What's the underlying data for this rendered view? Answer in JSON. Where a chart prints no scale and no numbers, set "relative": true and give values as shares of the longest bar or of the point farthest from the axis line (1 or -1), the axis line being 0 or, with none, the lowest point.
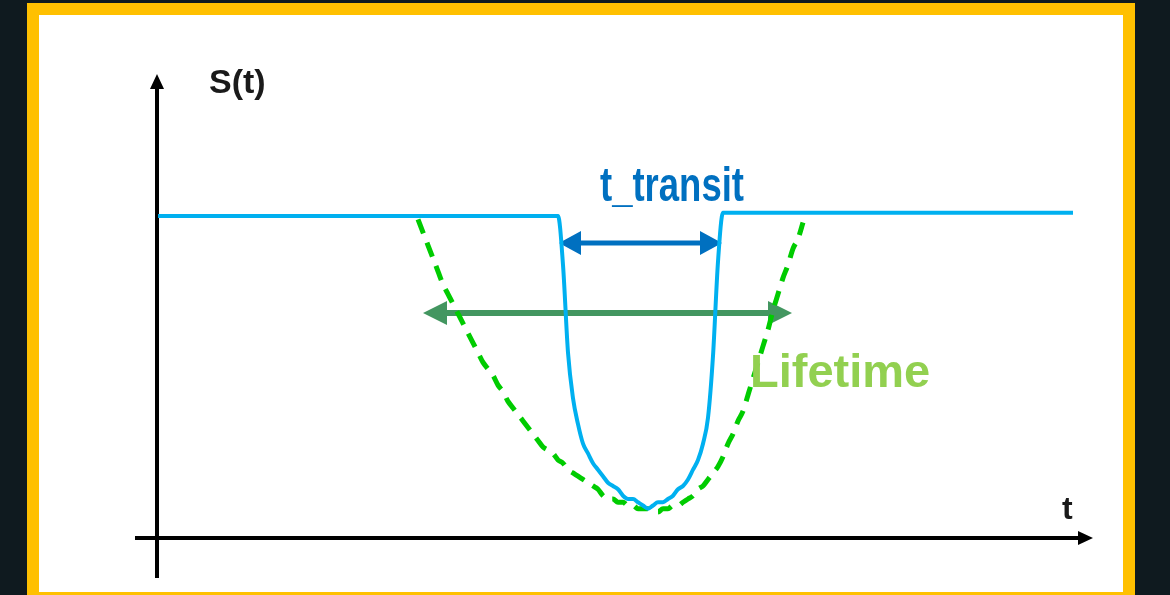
{
  "chart_data": {
    "type": "line",
    "relative": true,
    "tick_labels": false,
    "xlabel": "t",
    "ylabel": "S(t)",
    "annotations": [
      "t_transit",
      "Lifetime"
    ],
    "categories": [
      null,
      null,
      null,
      null,
      null,
      null,
      null,
      null,
      null,
      null,
      null,
      null,
      null,
      null,
      null,
      null,
      null,
      null,
      null,
      null,
      null,
      null,
      null,
      null,
      null,
      null,
      null,
      null,
      null,
      null,
      null,
      null,
      null,
      null,
      null,
      null,
      null,
      null,
      null,
      null,
      null,
      null,
      null,
      null,
      null,
      null,
      null,
      null,
      null,
      null,
      null,
      null,
      null,
      null,
      null,
      null,
      null,
      null,
      null,
      null,
      null,
      null,
      null,
      null,
      null,
      null,
      null,
      null,
      null,
      null,
      null,
      null,
      null,
      null,
      null,
      null,
      null,
      null,
      null,
      null,
      null,
      null,
      null,
      null,
      null,
      null,
      null,
      null,
      null,
      null,
      null,
      null,
      null,
      null,
      null,
      null,
      null,
      null,
      null,
      null,
      null,
      null,
      null,
      null,
      null,
      null,
      null,
      null,
      null,
      null,
      null,
      null,
      null,
      null,
      null,
      null,
      null,
      null,
      null,
      null,
      null,
      null,
      null,
      null,
      null,
      null,
      null,
      null,
      null,
      null,
      null,
      null,
      null,
      null,
      null,
      null,
      null,
      null,
      null,
      null,
      null,
      null,
      null,
      null,
      null,
      null,
      null,
      null,
      null,
      null,
      null,
      null,
      null,
      null,
      null,
      null,
      null,
      null,
      null,
      null,
      null,
      null,
      null,
      null,
      null,
      null,
      null,
      null,
      null,
      null,
      null,
      null,
      null,
      null,
      null,
      null,
      null,
      null,
      null,
      null,
      null,
      null,
      null,
      null
    ],
    "series": [
      {
        "color": "#00b0f0",
        "line_style": "solid",
        "values": [
          0.99,
          0.99,
          0.99,
          0.99,
          0.99,
          0.99,
          0.99,
          0.99,
          0.99,
          0.99,
          0.99,
          0.99,
          0.99,
          0.99,
          0.99,
          0.99,
          0.99,
          0.99,
          0.99,
          0.99,
          0.99,
          0.99,
          0.99,
          0.99,
          0.99,
          0.99,
          0.99,
          0.99,
          0.99,
          0.99,
          0.99,
          0.99,
          0.99,
          0.99,
          0.99,
          0.99,
          0.99,
          0.99,
          0.99,
          0.99,
          0.99,
          0.99,
          0.99,
          0.99,
          0.99,
          0.99,
          0.99,
          0.99,
          0.99,
          0.99,
          0.99,
          0.99,
          0.99,
          0.99,
          0.99,
          0.99,
          0.99,
          0.99,
          0.99,
          0.99,
          0.99,
          0.99,
          0.99,
          0.99,
          0.99,
          0.99,
          0.99,
          0.99,
          0.99,
          0.99,
          0.99,
          0.99,
          0.99,
          0.99,
          0.99,
          0.99,
          0.99,
          0.99,
          0.99,
          0.99,
          0.99,
          0.84,
          0.57,
          0.43,
          0.35,
          0.29,
          0.26,
          0.23,
          0.21,
          0.19,
          0.17,
          0.16,
          0.15,
          0.13,
          0.12,
          0.12,
          0.11,
          0.1,
          0.09,
          0.1,
          0.11,
          0.11,
          0.12,
          0.13,
          0.15,
          0.16,
          0.18,
          0.21,
          0.24,
          0.29,
          0.37,
          0.56,
          0.85,
          1,
          1,
          1,
          1,
          1,
          1,
          1,
          1,
          1,
          1,
          1,
          1,
          1,
          1,
          1,
          1,
          1,
          1,
          1,
          1,
          1,
          1,
          1,
          1,
          1,
          1,
          1,
          1,
          1,
          1,
          1,
          1,
          1,
          1,
          1,
          1,
          1,
          1,
          1,
          1,
          1,
          1,
          1,
          1,
          1,
          1,
          1,
          1,
          1,
          1,
          1,
          1,
          1,
          1,
          1,
          1,
          1,
          1,
          1,
          1,
          1,
          1,
          1,
          1,
          1,
          1,
          1,
          1,
          1,
          1,
          1
        ]
      },
      {
        "color": "#00cc00",
        "line_style": "dashed",
        "values": [
          null,
          null,
          null,
          null,
          null,
          null,
          null,
          null,
          null,
          null,
          null,
          null,
          null,
          null,
          null,
          null,
          null,
          null,
          null,
          null,
          null,
          null,
          null,
          null,
          null,
          null,
          null,
          null,
          null,
          null,
          null,
          null,
          null,
          null,
          null,
          null,
          null,
          null,
          null,
          null,
          null,
          null,
          null,
          null,
          null,
          null,
          null,
          null,
          null,
          null,
          null,
          null,
          0.98,
          0.94,
          0.9,
          0.86,
          0.82,
          0.78,
          0.75,
          0.72,
          0.69,
          0.66,
          0.63,
          0.6,
          0.57,
          0.54,
          0.52,
          0.5,
          0.47,
          0.45,
          0.42,
          0.4,
          0.38,
          0.36,
          0.34,
          0.32,
          0.3,
          0.28,
          0.27,
          0.26,
          0.24,
          0.23,
          0.21,
          0.2,
          0.19,
          0.18,
          0.17,
          0.16,
          0.15,
          0.13,
          0.12,
          0.12,
          0.11,
          0.11,
          0.1,
          0.1,
          0.09,
          0.09,
          0.09,
          0.08,
          0.08,
          0.09,
          0.09,
          0.1,
          0.1,
          0.11,
          0.12,
          0.13,
          0.15,
          0.16,
          0.18,
          0.2,
          0.22,
          0.25,
          0.29,
          0.32,
          0.36,
          0.39,
          0.44,
          0.49,
          0.54,
          0.59,
          0.64,
          0.7,
          0.75,
          0.8,
          0.84,
          0.89,
          0.92,
          0.97,
          null,
          null,
          null,
          null,
          null,
          null,
          null,
          null,
          null,
          null,
          null,
          null,
          null,
          null,
          null,
          null,
          null,
          null,
          null,
          null,
          null,
          null,
          null,
          null,
          null,
          null,
          null,
          null,
          null,
          null,
          null,
          null,
          null,
          null,
          null,
          null,
          null,
          null,
          null,
          null,
          null,
          null,
          null,
          null,
          null,
          null,
          null,
          null,
          null,
          null,
          null,
          null,
          null,
          null
        ]
      }
    ]
  }
}
